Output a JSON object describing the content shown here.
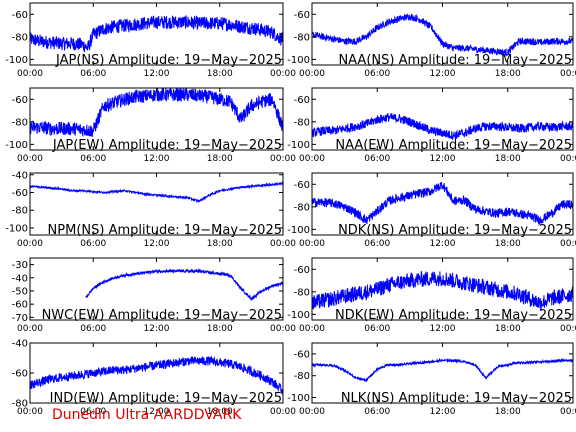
{
  "footer": "Dunedin Ultra AARDDVARK",
  "x_tick_labels": [
    "00:00",
    "06:00",
    "12:00",
    "18:00",
    "00:00"
  ],
  "colors": {
    "trace": "#0000ff",
    "axes": "#000000",
    "footer": "#e00000"
  },
  "chart_data": [
    {
      "type": "line",
      "title": "JAP(NS) Amplitude: 19−May−2025",
      "ylim": [
        -105,
        -50
      ],
      "yticks": [
        -100,
        -80,
        -60
      ],
      "series": [
        {
          "x": [
            0,
            1,
            2,
            3,
            4,
            5,
            5.5,
            6,
            7,
            8,
            9,
            10,
            11,
            12,
            13,
            14,
            15,
            16,
            17,
            18,
            19,
            20,
            21,
            22,
            23,
            23.5,
            24
          ],
          "y": [
            -82,
            -84,
            -85,
            -86,
            -86,
            -87,
            -90,
            -78,
            -73,
            -71,
            -70,
            -69,
            -68,
            -67,
            -67,
            -67,
            -67,
            -68,
            -68,
            -68,
            -69,
            -71,
            -72,
            -74,
            -76,
            -80,
            -82
          ],
          "noise": 6
        }
      ]
    },
    {
      "type": "line",
      "title": "NAA(NS) Amplitude: 19−May−2025",
      "ylim": [
        -105,
        -50
      ],
      "yticks": [
        -100,
        -80,
        -60
      ],
      "series": [
        {
          "x": [
            0,
            1,
            2,
            3,
            4,
            5,
            6,
            7,
            8,
            9,
            10,
            11,
            12,
            13,
            14,
            15,
            16,
            17,
            18,
            19,
            20,
            21,
            22,
            23,
            24
          ],
          "y": [
            -78,
            -80,
            -82,
            -84,
            -84,
            -80,
            -72,
            -67,
            -64,
            -62,
            -65,
            -72,
            -86,
            -90,
            -90,
            -91,
            -92,
            -93,
            -94,
            -84,
            -84,
            -85,
            -84,
            -84,
            -84
          ],
          "noise": 3
        }
      ]
    },
    {
      "type": "line",
      "title": "JAP(EW) Amplitude: 19−May−2025",
      "ylim": [
        -105,
        -50
      ],
      "yticks": [
        -100,
        -80,
        -60
      ],
      "series": [
        {
          "x": [
            0,
            1,
            2,
            3,
            4,
            5,
            6,
            7,
            8,
            9,
            10,
            11,
            12,
            13,
            14,
            15,
            16,
            17,
            18,
            19,
            20,
            21,
            22,
            23,
            24
          ],
          "y": [
            -85,
            -85,
            -86,
            -86,
            -86,
            -87,
            -88,
            -66,
            -63,
            -60,
            -58,
            -57,
            -56,
            -56,
            -56,
            -56,
            -57,
            -58,
            -60,
            -62,
            -78,
            -66,
            -62,
            -60,
            -86
          ],
          "noise": 6
        }
      ]
    },
    {
      "type": "line",
      "title": "NAA(EW) Amplitude: 19−May−2025",
      "ylim": [
        -105,
        -50
      ],
      "yticks": [
        -100,
        -80,
        -60
      ],
      "series": [
        {
          "x": [
            0,
            1,
            2,
            3,
            4,
            5,
            6,
            7,
            8,
            9,
            10,
            11,
            12,
            13,
            14,
            15,
            16,
            17,
            18,
            19,
            20,
            21,
            22,
            23,
            24
          ],
          "y": [
            -90,
            -88,
            -88,
            -86,
            -84,
            -82,
            -78,
            -76,
            -77,
            -80,
            -84,
            -88,
            -90,
            -92,
            -90,
            -86,
            -84,
            -84,
            -85,
            -86,
            -85,
            -84,
            -85,
            -84,
            -84
          ],
          "noise": 4
        }
      ]
    },
    {
      "type": "line",
      "title": "NPM(NS) Amplitude: 19−May−2025",
      "ylim": [
        -108,
        -38
      ],
      "yticks": [
        -100,
        -80,
        -60,
        -40
      ],
      "series": [
        {
          "x": [
            0,
            1,
            2,
            3,
            4,
            5,
            6,
            7,
            8,
            9,
            10,
            11,
            12,
            13,
            14,
            15,
            16,
            17,
            18,
            19,
            20,
            21,
            22,
            23,
            24
          ],
          "y": [
            -53,
            -54,
            -55,
            -56,
            -58,
            -58,
            -59,
            -60,
            -59,
            -58,
            -60,
            -62,
            -63,
            -64,
            -65,
            -66,
            -70,
            -63,
            -58,
            -56,
            -54,
            -53,
            -52,
            -51,
            -50
          ],
          "noise": 1
        }
      ]
    },
    {
      "type": "line",
      "title": "NDK(NS) Amplitude: 19−May−2025",
      "ylim": [
        -105,
        -50
      ],
      "yticks": [
        -100,
        -80,
        -60
      ],
      "series": [
        {
          "x": [
            0,
            1,
            2,
            3,
            4,
            5,
            6,
            7,
            8,
            9,
            10,
            11,
            12,
            13,
            14,
            15,
            16,
            17,
            18,
            19,
            20,
            21,
            22,
            23,
            24
          ],
          "y": [
            -76,
            -76,
            -77,
            -80,
            -85,
            -92,
            -84,
            -75,
            -72,
            -70,
            -68,
            -66,
            -60,
            -75,
            -74,
            -82,
            -84,
            -86,
            -84,
            -86,
            -88,
            -92,
            -86,
            -78,
            -78
          ],
          "noise": 4
        }
      ]
    },
    {
      "type": "line",
      "title": "NWC(EW) Amplitude: 19−May−2025",
      "ylim": [
        -72,
        -25
      ],
      "yticks": [
        -70,
        -60,
        -50,
        -40,
        -30
      ],
      "series": [
        {
          "x": [
            0,
            5.2,
            5.3,
            6,
            7,
            8,
            9,
            10,
            11,
            12,
            13,
            14,
            15,
            16,
            17,
            18,
            19,
            20,
            21,
            22,
            23,
            24
          ],
          "y": [
            null,
            null,
            -55,
            -48,
            -43,
            -40,
            -38,
            -37,
            -36,
            -35,
            -35,
            -35,
            -35,
            -35,
            -36,
            -37,
            -38,
            -48,
            -56,
            -50,
            -46,
            -44
          ],
          "noise": 1
        }
      ]
    },
    {
      "type": "line",
      "title": "NDK(EW) Amplitude: 19−May−2025",
      "ylim": [
        -105,
        -50
      ],
      "yticks": [
        -100,
        -80,
        -60
      ],
      "series": [
        {
          "x": [
            0,
            1,
            2,
            3,
            4,
            5,
            6,
            7,
            8,
            9,
            10,
            11,
            12,
            13,
            14,
            15,
            16,
            17,
            18,
            19,
            20,
            21,
            22,
            23,
            24
          ],
          "y": [
            -90,
            -88,
            -86,
            -84,
            -82,
            -80,
            -78,
            -74,
            -72,
            -70,
            -69,
            -68,
            -68,
            -70,
            -72,
            -74,
            -76,
            -78,
            -80,
            -82,
            -86,
            -90,
            -86,
            -84,
            -82
          ],
          "noise": 7
        }
      ]
    },
    {
      "type": "line",
      "title": "IND(EW) Amplitude: 19−May−2025",
      "ylim": [
        -80,
        -40
      ],
      "yticks": [
        -80,
        -60,
        -40
      ],
      "series": [
        {
          "x": [
            0,
            1,
            2,
            3,
            4,
            5,
            6,
            7,
            8,
            9,
            10,
            11,
            12,
            13,
            14,
            15,
            16,
            17,
            18,
            19,
            20,
            21,
            22,
            23,
            24
          ],
          "y": [
            -68,
            -66,
            -64,
            -63,
            -62,
            -61,
            -60,
            -59,
            -58,
            -58,
            -57,
            -56,
            -55,
            -54,
            -53,
            -52,
            -52,
            -52,
            -53,
            -54,
            -56,
            -59,
            -62,
            -66,
            -72
          ],
          "noise": 3
        }
      ]
    },
    {
      "type": "line",
      "title": "NLK(NS) Amplitude: 19−May−2025",
      "ylim": [
        -105,
        -50
      ],
      "yticks": [
        -100,
        -80,
        -60
      ],
      "series": [
        {
          "x": [
            0,
            1,
            2,
            3,
            4,
            5,
            6,
            7,
            8,
            9,
            10,
            11,
            12,
            13,
            14,
            15,
            16,
            17,
            18,
            19,
            20,
            21,
            22,
            23,
            24
          ],
          "y": [
            -70,
            -70,
            -71,
            -75,
            -82,
            -84,
            -74,
            -70,
            -70,
            -69,
            -68,
            -67,
            -66,
            -66,
            -67,
            -70,
            -82,
            -72,
            -70,
            -68,
            -68,
            -67,
            -67,
            -66,
            -66
          ],
          "noise": 1
        }
      ]
    }
  ]
}
